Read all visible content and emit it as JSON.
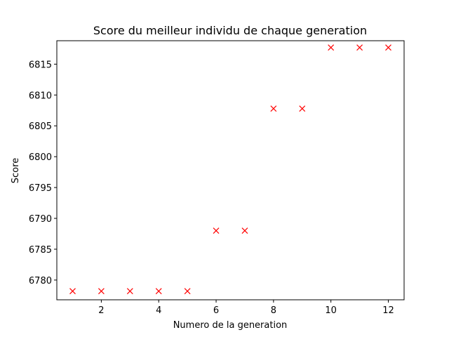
{
  "chart_data": {
    "type": "scatter",
    "title": "Score du meilleur individu de chaque generation",
    "xlabel": "Numero de la generation",
    "ylabel": "Score",
    "xlim": [
      0.45,
      12.55
    ],
    "ylim": [
      6776.8,
      6818.8
    ],
    "xticks": [
      2,
      4,
      6,
      8,
      10,
      12
    ],
    "yticks": [
      6780,
      6785,
      6790,
      6795,
      6800,
      6805,
      6810,
      6815
    ],
    "marker": "x",
    "marker_color": "#ff0000",
    "grid": false,
    "series": [
      {
        "x": [
          1,
          2,
          3,
          4,
          5,
          6,
          7,
          8,
          9,
          10,
          11,
          12
        ],
        "y": [
          6778.2,
          6778.2,
          6778.2,
          6778.2,
          6778.2,
          6788.0,
          6788.0,
          6807.8,
          6807.8,
          6817.7,
          6817.7,
          6817.7
        ]
      }
    ]
  }
}
